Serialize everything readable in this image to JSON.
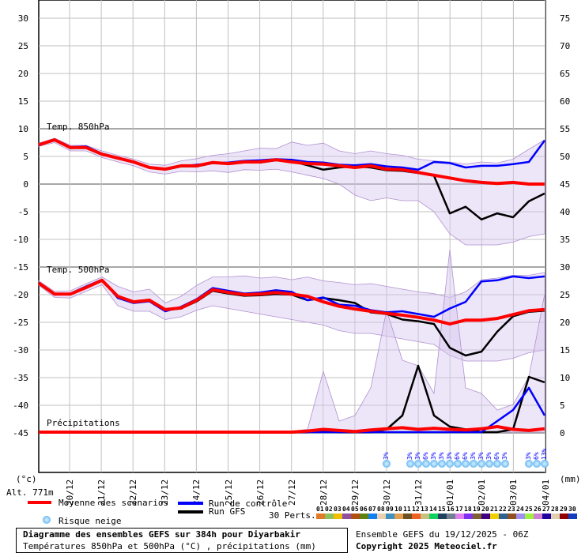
{
  "chart_data": {
    "type": "line",
    "x": [
      "19/12 00Z",
      "19/12 12Z",
      "20/12 00Z",
      "20/12 12Z",
      "21/12 00Z",
      "21/12 12Z",
      "22/12 00Z",
      "22/12 12Z",
      "23/12 00Z",
      "23/12 12Z",
      "24/12 00Z",
      "24/12 12Z",
      "25/12 00Z",
      "25/12 12Z",
      "26/12 00Z",
      "26/12 12Z",
      "27/12 00Z",
      "27/12 12Z",
      "28/12 00Z",
      "28/12 12Z",
      "29/12 00Z",
      "29/12 12Z",
      "30/12 00Z",
      "30/12 12Z",
      "31/12 00Z",
      "31/12 12Z",
      "01/01 00Z",
      "01/01 12Z",
      "02/01 00Z",
      "02/01 12Z",
      "03/01 00Z",
      "03/01 12Z",
      "04/01 00Z"
    ],
    "x_tick_labels": [
      "20/12",
      "21/12",
      "22/12",
      "23/12",
      "24/12",
      "25/12",
      "26/12",
      "27/12",
      "28/12",
      "29/12",
      "30/12",
      "31/12",
      "01/01",
      "02/01",
      "03/01",
      "04/01"
    ],
    "left_axis": {
      "unit": "(°c)",
      "ticks": [
        30,
        25,
        20,
        15,
        10,
        5,
        0,
        -5,
        -10,
        -15,
        -20,
        -25,
        -30,
        -35,
        -40,
        -45
      ],
      "range": [
        -45,
        30
      ]
    },
    "right_axis": {
      "unit": "(mm)",
      "ticks": [
        75,
        70,
        65,
        60,
        55,
        50,
        45,
        40,
        35,
        30,
        25,
        20,
        15,
        10,
        5,
        0
      ],
      "range": [
        0,
        75
      ]
    },
    "grid": true,
    "panels": {
      "t850": {
        "label": "Temp. 850hPa",
        "mean": [
          7.1,
          8.0,
          6.6,
          6.6,
          5.4,
          4.7,
          4.0,
          3.0,
          2.7,
          3.3,
          3.3,
          3.9,
          3.7,
          4.0,
          4.0,
          4.4,
          4.0,
          3.7,
          3.6,
          3.3,
          3.0,
          3.3,
          2.7,
          2.6,
          2.1,
          1.6,
          1.1,
          0.6,
          0.3,
          0.1,
          0.3,
          0.0,
          0.0
        ],
        "control": [
          7.0,
          8.1,
          6.7,
          6.8,
          5.5,
          4.8,
          4.0,
          3.0,
          2.8,
          3.2,
          3.5,
          3.8,
          3.9,
          4.2,
          4.3,
          4.5,
          4.4,
          4.0,
          3.9,
          3.5,
          3.4,
          3.6,
          3.2,
          3.0,
          2.6,
          4.0,
          3.8,
          3.0,
          3.3,
          3.3,
          3.6,
          4.0,
          7.9
        ],
        "gfs": [
          7.0,
          8.0,
          6.5,
          6.6,
          5.4,
          4.6,
          4.0,
          3.0,
          2.6,
          3.2,
          3.2,
          3.8,
          3.7,
          4.0,
          3.9,
          4.3,
          4.1,
          3.4,
          2.6,
          3.0,
          3.2,
          3.0,
          2.5,
          2.4,
          2.0,
          1.5,
          -5.3,
          -4.1,
          -6.4,
          -5.3,
          -6.0,
          -3.1,
          -1.7
        ],
        "min": [
          6.8,
          7.5,
          6.0,
          6.0,
          4.8,
          4.0,
          3.3,
          2.2,
          1.8,
          2.3,
          2.2,
          2.4,
          2.1,
          2.6,
          2.5,
          2.7,
          2.2,
          1.6,
          1.0,
          0.0,
          -2.0,
          -3.0,
          -2.5,
          -3.0,
          -3.0,
          -5.0,
          -9.0,
          -11.0,
          -11.0,
          -11.0,
          -10.5,
          -9.5,
          -9.0
        ],
        "max": [
          7.4,
          8.3,
          7.0,
          7.0,
          6.0,
          5.2,
          4.5,
          3.6,
          3.4,
          4.2,
          4.6,
          5.2,
          5.5,
          6.0,
          6.5,
          6.4,
          7.6,
          7.0,
          7.4,
          6.0,
          5.5,
          6.0,
          5.5,
          5.2,
          4.5,
          4.2,
          4.0,
          3.6,
          4.0,
          3.8,
          4.5,
          6.3,
          8.0
        ]
      },
      "t500": {
        "label": "Temp. 500hPa",
        "mean": [
          -17.9,
          -19.9,
          -19.9,
          -18.7,
          -17.4,
          -20.3,
          -21.3,
          -21.0,
          -22.7,
          -22.4,
          -21.0,
          -19.1,
          -19.6,
          -20.0,
          -19.9,
          -19.6,
          -19.9,
          -20.3,
          -21.3,
          -22.1,
          -22.6,
          -23.0,
          -23.4,
          -23.7,
          -24.1,
          -24.6,
          -25.3,
          -24.6,
          -24.6,
          -24.3,
          -23.6,
          -22.9,
          -22.7
        ],
        "control": [
          -18.0,
          -20.0,
          -19.8,
          -18.5,
          -17.3,
          -20.6,
          -21.5,
          -21.2,
          -23.0,
          -22.2,
          -20.8,
          -18.8,
          -19.3,
          -19.8,
          -19.6,
          -19.2,
          -19.5,
          -21.0,
          -20.5,
          -21.8,
          -22.0,
          -22.8,
          -23.2,
          -23.0,
          -23.5,
          -24.0,
          -22.5,
          -21.3,
          -17.6,
          -17.4,
          -16.7,
          -17.0,
          -16.7
        ],
        "gfs": [
          -17.8,
          -19.8,
          -19.9,
          -18.6,
          -17.5,
          -20.4,
          -21.2,
          -21.1,
          -22.8,
          -22.5,
          -21.2,
          -19.3,
          -19.8,
          -20.2,
          -20.1,
          -19.9,
          -20.0,
          -21.0,
          -20.6,
          -21.0,
          -21.5,
          -23.2,
          -23.5,
          -24.5,
          -24.8,
          -25.3,
          -29.6,
          -31.0,
          -30.3,
          -26.7,
          -23.9,
          -23.1,
          -22.9
        ],
        "min": [
          -18.3,
          -20.5,
          -20.6,
          -19.4,
          -18.2,
          -22.0,
          -23.0,
          -23.0,
          -24.5,
          -24.0,
          -22.8,
          -22.0,
          -22.5,
          -23.0,
          -23.5,
          -24.0,
          -24.5,
          -25.0,
          -25.5,
          -26.5,
          -27.0,
          -27.0,
          -27.5,
          -28.0,
          -28.5,
          -29.0,
          -31.0,
          -32.0,
          -32.0,
          -32.0,
          -31.5,
          -30.5,
          -30.0
        ],
        "max": [
          -17.5,
          -19.4,
          -19.3,
          -18.0,
          -16.8,
          -18.5,
          -19.5,
          -19.0,
          -21.5,
          -20.3,
          -18.3,
          -16.8,
          -16.8,
          -16.6,
          -17.0,
          -16.8,
          -17.3,
          -16.8,
          -17.5,
          -17.8,
          -18.2,
          -18.0,
          -18.5,
          -19.0,
          -19.5,
          -19.8,
          -20.5,
          -19.5,
          -17.3,
          -17.0,
          -16.5,
          -16.5,
          -16.0
        ]
      },
      "precip": {
        "label": "Précipitations",
        "mean": [
          0,
          0,
          0,
          0,
          0,
          0,
          0,
          0,
          0,
          0,
          0,
          0,
          0,
          0,
          0,
          0,
          0,
          0.2,
          0.5,
          0.3,
          0.1,
          0.4,
          0.6,
          0.8,
          0.5,
          0.7,
          0.5,
          0.4,
          0.6,
          1.0,
          0.5,
          0.3,
          0.6
        ],
        "control": [
          0,
          0,
          0,
          0,
          0,
          0,
          0,
          0,
          0,
          0,
          0,
          0,
          0,
          0,
          0,
          0,
          0,
          0,
          0,
          0,
          0,
          0,
          0,
          0,
          0,
          0,
          0,
          0,
          0,
          2.0,
          4.0,
          8.0,
          3.0
        ],
        "gfs": [
          0,
          0,
          0,
          0,
          0,
          0,
          0,
          0,
          0,
          0,
          0,
          0,
          0,
          0,
          0,
          0,
          0,
          0,
          0.3,
          0,
          0,
          0,
          0.5,
          3.0,
          12.0,
          3.0,
          1.0,
          0.5,
          0,
          0,
          0.5,
          10.0,
          9.0
        ],
        "max": [
          0,
          0,
          0,
          0,
          0,
          0,
          0,
          0,
          0,
          0,
          0,
          0,
          0,
          0,
          0,
          0,
          0.2,
          0.5,
          11.0,
          2.0,
          3.0,
          8.0,
          22.0,
          13.0,
          12.0,
          7.0,
          33.0,
          8.0,
          7.0,
          4.0,
          5.0,
          10.0,
          25.0
        ]
      }
    },
    "snow_risk": [
      {
        "x": "30/12 00Z",
        "pct": "3%"
      },
      {
        "x": "30/12 18Z",
        "pct": "3%"
      },
      {
        "x": "31/12 00Z",
        "pct": "3%"
      },
      {
        "x": "31/12 06Z",
        "pct": "6%"
      },
      {
        "x": "31/12 12Z",
        "pct": "3%"
      },
      {
        "x": "31/12 18Z",
        "pct": "3%"
      },
      {
        "x": "01/01 00Z",
        "pct": "3%"
      },
      {
        "x": "01/01 06Z",
        "pct": "6%"
      },
      {
        "x": "01/01 12Z",
        "pct": "6%"
      },
      {
        "x": "01/01 18Z",
        "pct": "3%"
      },
      {
        "x": "02/01 00Z",
        "pct": "3%"
      },
      {
        "x": "02/01 06Z",
        "pct": "3%"
      },
      {
        "x": "02/01 12Z",
        "pct": "6%"
      },
      {
        "x": "02/01 18Z",
        "pct": "3%"
      },
      {
        "x": "03/01 12Z",
        "pct": "3%"
      },
      {
        "x": "03/01 18Z",
        "pct": "6%"
      },
      {
        "x": "04/01 00Z",
        "pct": "13%"
      }
    ],
    "colors": {
      "mean": "#ff0000",
      "control": "#0000ff",
      "gfs": "#000000",
      "grid": "#c0c0c0"
    }
  },
  "altitude": "Alt. 771m",
  "legend": {
    "mean": "Moyenne des scénarios",
    "control": "Run de contrôle",
    "gfs": "Run GFS",
    "snow": "Risque neige",
    "perts_label": "30 Perts.",
    "perts": [
      {
        "n": "01",
        "color": "#e07b2a"
      },
      {
        "n": "02",
        "color": "#8fc060"
      },
      {
        "n": "03",
        "color": "#f0c000"
      },
      {
        "n": "04",
        "color": "#9050a0"
      },
      {
        "n": "05",
        "color": "#b05010"
      },
      {
        "n": "06",
        "color": "#608010"
      },
      {
        "n": "07",
        "color": "#1080f0"
      },
      {
        "n": "08",
        "color": "#e8d0b0"
      },
      {
        "n": "09",
        "color": "#4090c0"
      },
      {
        "n": "10",
        "color": "#e0a050"
      },
      {
        "n": "11",
        "color": "#705020"
      },
      {
        "n": "12",
        "color": "#f06020"
      },
      {
        "n": "13",
        "color": "#c8c080"
      },
      {
        "n": "14",
        "color": "#10d060"
      },
      {
        "n": "15",
        "color": "#204060"
      },
      {
        "n": "16",
        "color": "#708090"
      },
      {
        "n": "17",
        "color": "#e080f0"
      },
      {
        "n": "18",
        "color": "#8030f0"
      },
      {
        "n": "19",
        "color": "#806030"
      },
      {
        "n": "20",
        "color": "#400080"
      },
      {
        "n": "21",
        "color": "#f0d000"
      },
      {
        "n": "22",
        "color": "#306090"
      },
      {
        "n": "23",
        "color": "#905020"
      },
      {
        "n": "24",
        "color": "#a090f0"
      },
      {
        "n": "25",
        "color": "#a0f040"
      },
      {
        "n": "26",
        "color": "#d080d0"
      },
      {
        "n": "27",
        "color": "#2000a0"
      },
      {
        "n": "28",
        "color": "#e0d0b0"
      },
      {
        "n": "29",
        "color": "#900000"
      },
      {
        "n": "30",
        "color": "#1040c0"
      }
    ]
  },
  "footer": {
    "title": "Diagramme des ensembles GEFS sur 384h pour Diyarbakir",
    "subtitle": "Températures 850hPa et 500hPa (°C) , précipitations (mm)",
    "run": "Ensemble GEFS du 19/12/2025 - 06Z",
    "copyright": "Copyright 2025 Meteociel.fr"
  }
}
